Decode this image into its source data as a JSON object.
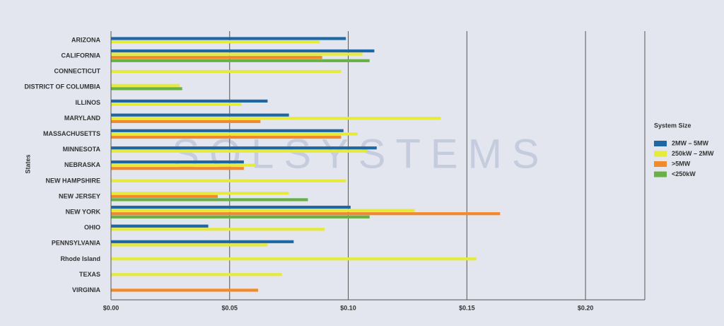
{
  "chart_data": {
    "type": "bar",
    "orientation": "horizontal",
    "watermark": "SOLSYSTEMS",
    "y_axis_label": "States",
    "legend_title": "System Size",
    "legend_position": "right",
    "grid": true,
    "categories": [
      "ARIZONA",
      "CALIFORNIA",
      "CONNECTICUT",
      "DISTRICT OF COLUMBIA",
      "ILLINOS",
      "MARYLAND",
      "MASSACHUSETTS",
      "MINNESOTA",
      "NEBRASKA",
      "NEW HAMPSHIRE",
      "NEW JERSEY",
      "NEW YORK",
      "OHIO",
      "PENNSYLVANIA",
      "Rhode Island",
      "TEXAS",
      "VIRGINIA"
    ],
    "series": [
      {
        "name": "2MW – 5MW",
        "color": "#1f67a3",
        "values": [
          0.099,
          0.111,
          null,
          null,
          0.066,
          0.075,
          0.098,
          0.112,
          0.056,
          null,
          null,
          0.101,
          0.041,
          0.077,
          null,
          null,
          null
        ]
      },
      {
        "name": "250kW – 2MW",
        "color": "#e6ea3d",
        "values": [
          0.088,
          0.106,
          0.097,
          0.029,
          0.055,
          0.139,
          0.104,
          0.108,
          0.061,
          0.099,
          0.075,
          0.128,
          0.09,
          0.066,
          0.154,
          0.072,
          null
        ]
      },
      {
        "name": ">5MW",
        "color": "#f08a2b",
        "values": [
          null,
          0.089,
          null,
          null,
          null,
          0.063,
          0.097,
          null,
          0.056,
          null,
          0.045,
          0.164,
          null,
          null,
          null,
          null,
          0.062
        ]
      },
      {
        "name": "<250kW",
        "color": "#68b146",
        "values": [
          null,
          0.109,
          null,
          0.03,
          null,
          null,
          null,
          null,
          null,
          null,
          0.083,
          0.109,
          null,
          null,
          null,
          null,
          null
        ]
      }
    ],
    "xlim": [
      0,
      0.225
    ],
    "xticks": [
      {
        "value": 0,
        "label": "$0.00"
      },
      {
        "value": 0.05,
        "label": "$0.05"
      },
      {
        "value": 0.1,
        "label": "$0.10"
      },
      {
        "value": 0.15,
        "label": "$0.15"
      },
      {
        "value": 0.2,
        "label": "$0.20"
      }
    ]
  }
}
